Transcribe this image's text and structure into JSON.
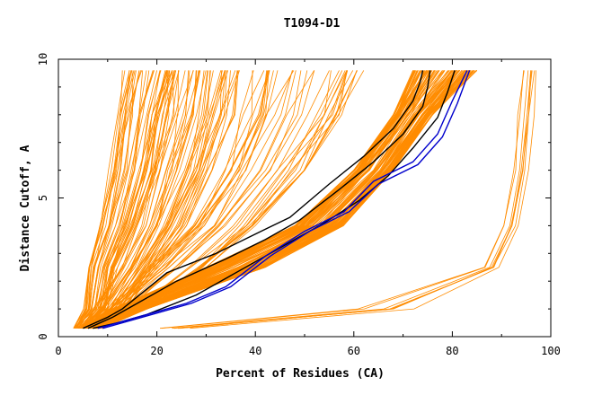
{
  "chart_data": {
    "type": "line",
    "title": "T1094-D1",
    "xlabel": "Percent of Residues (CA)",
    "ylabel": "Distance Cutoff, A",
    "xlim": [
      0,
      100
    ],
    "ylim": [
      0,
      10
    ],
    "x_ticks": [
      0,
      20,
      40,
      60,
      80,
      100
    ],
    "y_ticks": [
      0,
      5,
      10
    ],
    "grid": false,
    "legend": "none",
    "colors": {
      "background_models": "#ff8c00",
      "highlight_black": "#000000",
      "highlight_blue": "#0000cc"
    },
    "band_models": [
      {
        "name": "steep-left",
        "count": 40,
        "x": [
          [
            3,
            6
          ],
          [
            5,
            10
          ],
          [
            6,
            12
          ],
          [
            8,
            16
          ],
          [
            10,
            20
          ],
          [
            12,
            22
          ],
          [
            13,
            25
          ]
        ]
      },
      {
        "name": "left-mid",
        "count": 40,
        "x": [
          [
            3,
            8
          ],
          [
            7,
            14
          ],
          [
            12,
            20
          ],
          [
            16,
            26
          ],
          [
            19,
            32
          ],
          [
            21,
            36
          ],
          [
            22,
            38
          ]
        ]
      },
      {
        "name": "middle",
        "count": 35,
        "x": [
          [
            4,
            9
          ],
          [
            9,
            18
          ],
          [
            18,
            30
          ],
          [
            26,
            40
          ],
          [
            32,
            50
          ],
          [
            36,
            58
          ],
          [
            38,
            62
          ]
        ]
      },
      {
        "name": "main",
        "count": 110,
        "x": [
          [
            4,
            8
          ],
          [
            11,
            18
          ],
          [
            30,
            42
          ],
          [
            48,
            58
          ],
          [
            60,
            68
          ],
          [
            68,
            76
          ],
          [
            72,
            85
          ]
        ]
      },
      {
        "name": "far-right",
        "count": 8,
        "x": [
          [
            20,
            28
          ],
          [
            60,
            74
          ],
          [
            86,
            90
          ],
          [
            90,
            94
          ],
          [
            92,
            96
          ],
          [
            93,
            97
          ],
          [
            94,
            98
          ]
        ]
      }
    ],
    "band_levels": [
      0.3,
      1,
      2.5,
      4,
      6,
      8,
      9.6
    ],
    "series": [
      {
        "color": "#000000",
        "x": [
          5,
          10,
          13,
          22,
          32,
          40,
          47,
          55,
          62,
          68,
          72,
          73.5,
          74
        ],
        "y": [
          0.3,
          0.7,
          1,
          2.3,
          3,
          3.7,
          4.3,
          5.5,
          6.5,
          7.5,
          8.5,
          9.2,
          9.6
        ]
      },
      {
        "color": "#000000",
        "x": [
          6,
          11,
          14,
          24,
          34,
          42,
          49,
          57,
          64,
          70,
          74,
          75,
          75.5
        ],
        "y": [
          0.3,
          0.7,
          1,
          2,
          2.8,
          3.5,
          4.2,
          5.3,
          6.3,
          7.3,
          8.3,
          9,
          9.6
        ]
      },
      {
        "color": "#000000",
        "x": [
          7,
          12,
          18,
          28,
          38,
          46,
          54,
          61,
          67,
          72,
          77,
          79,
          80.5
        ],
        "y": [
          0.3,
          0.5,
          0.8,
          1.5,
          2.5,
          3.3,
          4.1,
          4.9,
          5.8,
          6.8,
          7.9,
          8.8,
          9.6
        ]
      },
      {
        "color": "#0000cc",
        "x": [
          8,
          12,
          18,
          26,
          34,
          42,
          50,
          58,
          64,
          72,
          77,
          80,
          83
        ],
        "y": [
          0.3,
          0.5,
          0.8,
          1.2,
          1.8,
          2.9,
          3.8,
          4.5,
          5.6,
          6.3,
          7.3,
          8.5,
          9.6
        ]
      },
      {
        "color": "#0000cc",
        "x": [
          9,
          13,
          19,
          27,
          35,
          43,
          51,
          59,
          65,
          73,
          78,
          81,
          83.5
        ],
        "y": [
          0.3,
          0.5,
          0.8,
          1.2,
          1.8,
          2.9,
          3.8,
          4.5,
          5.5,
          6.2,
          7.2,
          8.4,
          9.6
        ]
      }
    ]
  }
}
